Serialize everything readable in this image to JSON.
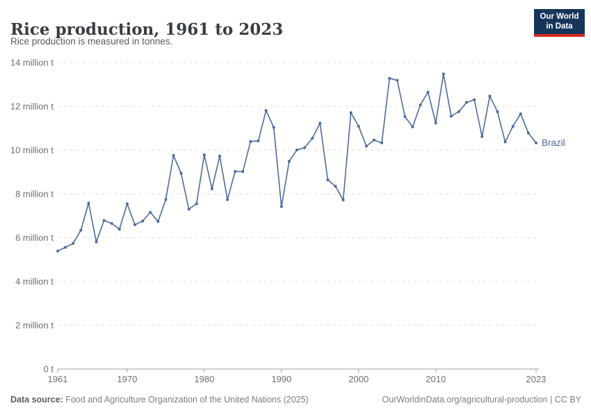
{
  "header": {
    "title": "Rice production, 1961 to 2023",
    "subtitle": "Rice production is measured in tonnes.",
    "logo": {
      "line1": "Our World",
      "line2": "in Data"
    }
  },
  "chart_data": {
    "type": "line",
    "title": "Rice production, 1961 to 2023",
    "unit": "million tonnes",
    "grid": "horizontal dashed",
    "legend_position": "end-of-line label",
    "ylim": [
      0,
      14
    ],
    "y_ticks": [
      {
        "value": 0,
        "label": "0 t"
      },
      {
        "value": 2,
        "label": "2 million t"
      },
      {
        "value": 4,
        "label": "4 million t"
      },
      {
        "value": 6,
        "label": "6 million t"
      },
      {
        "value": 8,
        "label": "8 million t"
      },
      {
        "value": 10,
        "label": "10 million t"
      },
      {
        "value": 12,
        "label": "12 million t"
      },
      {
        "value": 14,
        "label": "14 million t"
      }
    ],
    "x_ticks": [
      1961,
      1970,
      1980,
      1990,
      2000,
      2010,
      2023
    ],
    "series": [
      {
        "name": "Brazil",
        "color": "#4C6A9C",
        "x": [
          1961,
          1962,
          1963,
          1964,
          1965,
          1966,
          1967,
          1968,
          1969,
          1970,
          1971,
          1972,
          1973,
          1974,
          1975,
          1976,
          1977,
          1978,
          1979,
          1980,
          1981,
          1982,
          1983,
          1984,
          1985,
          1986,
          1987,
          1988,
          1989,
          1990,
          1991,
          1992,
          1993,
          1994,
          1995,
          1996,
          1997,
          1998,
          1999,
          2000,
          2001,
          2002,
          2003,
          2004,
          2005,
          2006,
          2007,
          2008,
          2009,
          2010,
          2011,
          2012,
          2013,
          2014,
          2015,
          2016,
          2017,
          2018,
          2019,
          2020,
          2021,
          2022,
          2023
        ],
        "values": [
          5.39,
          5.56,
          5.74,
          6.34,
          7.58,
          5.8,
          6.79,
          6.65,
          6.39,
          7.55,
          6.59,
          6.76,
          7.16,
          6.74,
          7.74,
          9.76,
          8.94,
          7.3,
          7.55,
          9.78,
          8.23,
          9.73,
          7.74,
          9.03,
          9.02,
          10.4,
          10.42,
          11.81,
          11.04,
          7.42,
          9.49,
          10.01,
          10.11,
          10.54,
          11.23,
          8.64,
          8.35,
          7.72,
          11.71,
          11.09,
          10.18,
          10.46,
          10.33,
          13.28,
          13.19,
          11.53,
          11.06,
          12.06,
          12.65,
          11.24,
          13.48,
          11.55,
          11.76,
          12.18,
          12.3,
          10.62,
          12.47,
          11.75,
          10.37,
          11.09,
          11.66,
          10.78,
          10.33
        ]
      }
    ]
  },
  "footer": {
    "datasource_label": "Data source:",
    "datasource_text": " Food and Agriculture Organization of the United Nations (2025)",
    "right_text": "OurWorldinData.org/agricultural-production | CC BY"
  }
}
